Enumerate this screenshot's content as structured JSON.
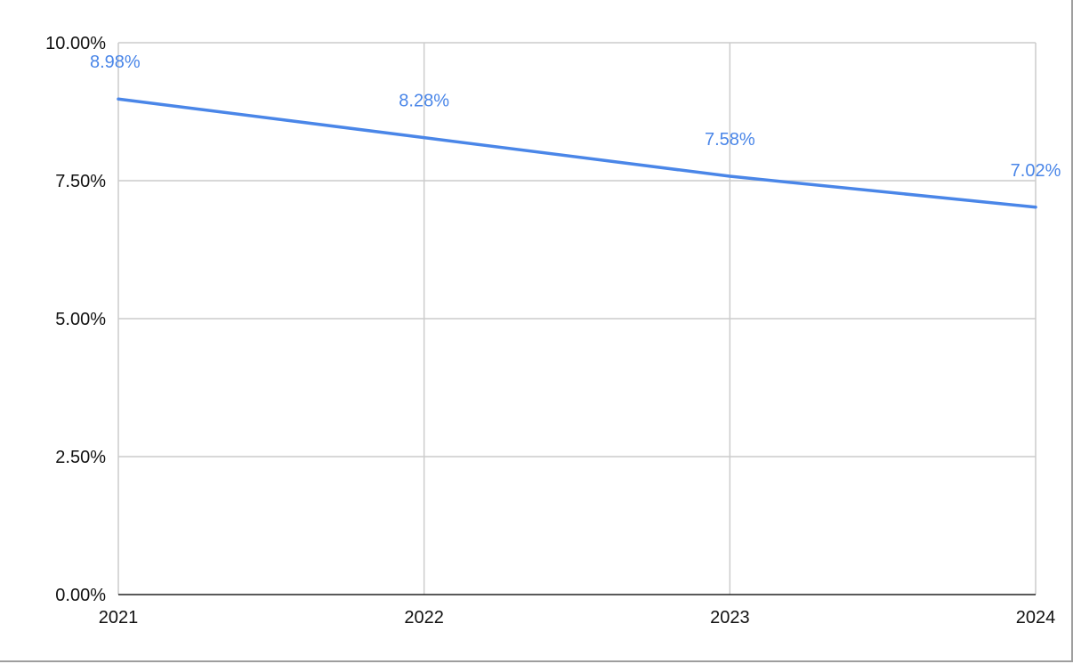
{
  "chart_data": {
    "type": "line",
    "title": "",
    "xlabel": "",
    "ylabel": "",
    "x": [
      "2021",
      "2022",
      "2023",
      "2024"
    ],
    "series": [
      {
        "values": [
          8.98,
          8.28,
          7.58,
          7.02
        ],
        "data_labels": [
          "8.98%",
          "8.28%",
          "7.58%",
          "7.02%"
        ],
        "color": "#4a86e8"
      }
    ],
    "ylim": [
      0,
      10
    ],
    "yticks": [
      0,
      2.5,
      5,
      7.5,
      10
    ],
    "ytick_labels": [
      "0.00%",
      "2.50%",
      "5.00%",
      "7.50%",
      "10.00%"
    ],
    "grid": true,
    "legend": "none"
  }
}
